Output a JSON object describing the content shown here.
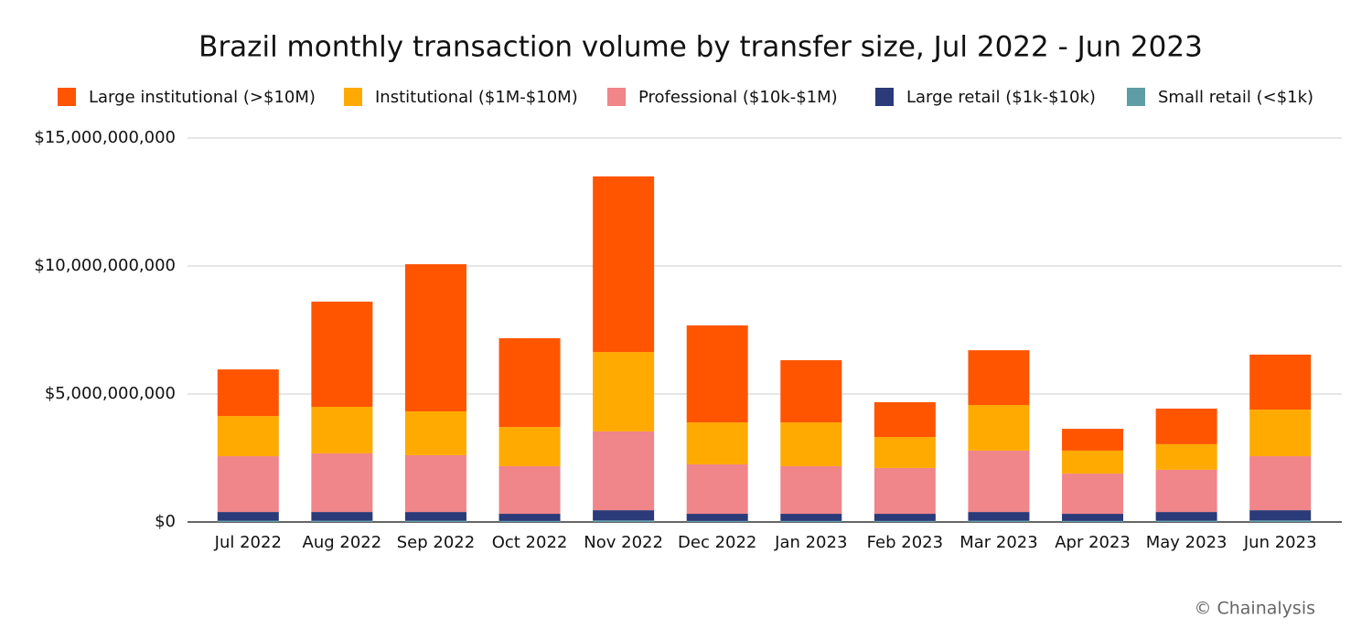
{
  "chart_data": {
    "type": "stacked_bar",
    "title": "Brazil monthly transaction volume by transfer size, Jul 2022 - Jun 2023",
    "categories": [
      "Jul 2022",
      "Aug 2022",
      "Sep 2022",
      "Oct 2022",
      "Nov 2022",
      "Dec 2022",
      "Jan 2023",
      "Feb 2023",
      "Mar 2023",
      "Apr 2023",
      "May 2023",
      "Jun 2023"
    ],
    "series": [
      {
        "name": "Large institutional (>$10M)",
        "color": "#ff5500",
        "values": [
          1820000000,
          4110000000,
          5750000000,
          3470000000,
          6860000000,
          3790000000,
          2430000000,
          1360000000,
          2140000000,
          850000000,
          1390000000,
          2150000000
        ]
      },
      {
        "name": "Institutional ($1M-$10M)",
        "color": "#ffaa00",
        "values": [
          1570000000,
          1820000000,
          1710000000,
          1530000000,
          3100000000,
          1640000000,
          1710000000,
          1210000000,
          1780000000,
          900000000,
          1000000000,
          1820000000
        ]
      },
      {
        "name": "Professional ($10k-$1M)",
        "color": "#f0858a",
        "values": [
          2180000000,
          2290000000,
          2220000000,
          1860000000,
          3080000000,
          1930000000,
          1860000000,
          1790000000,
          2400000000,
          1570000000,
          1650000000,
          2110000000
        ]
      },
      {
        "name": "Large retail ($1k-$10k)",
        "color": "#2b3a78",
        "values": [
          340000000,
          340000000,
          340000000,
          280000000,
          400000000,
          280000000,
          280000000,
          280000000,
          340000000,
          280000000,
          340000000,
          400000000
        ]
      },
      {
        "name": "Small retail (<$1k)",
        "color": "#5e9ca6",
        "values": [
          50000000,
          50000000,
          50000000,
          40000000,
          60000000,
          40000000,
          40000000,
          40000000,
          50000000,
          40000000,
          50000000,
          60000000
        ]
      }
    ],
    "ylim": [
      0,
      15000000000
    ],
    "yticks": [
      {
        "value": 0,
        "label": "$0"
      },
      {
        "value": 5000000000,
        "label": "$5,000,000,000"
      },
      {
        "value": 10000000000,
        "label": "$10,000,000,000"
      },
      {
        "value": 15000000000,
        "label": "$15,000,000,000"
      }
    ],
    "grid": true,
    "legend": "top",
    "watermark": "© Chainalysis"
  }
}
